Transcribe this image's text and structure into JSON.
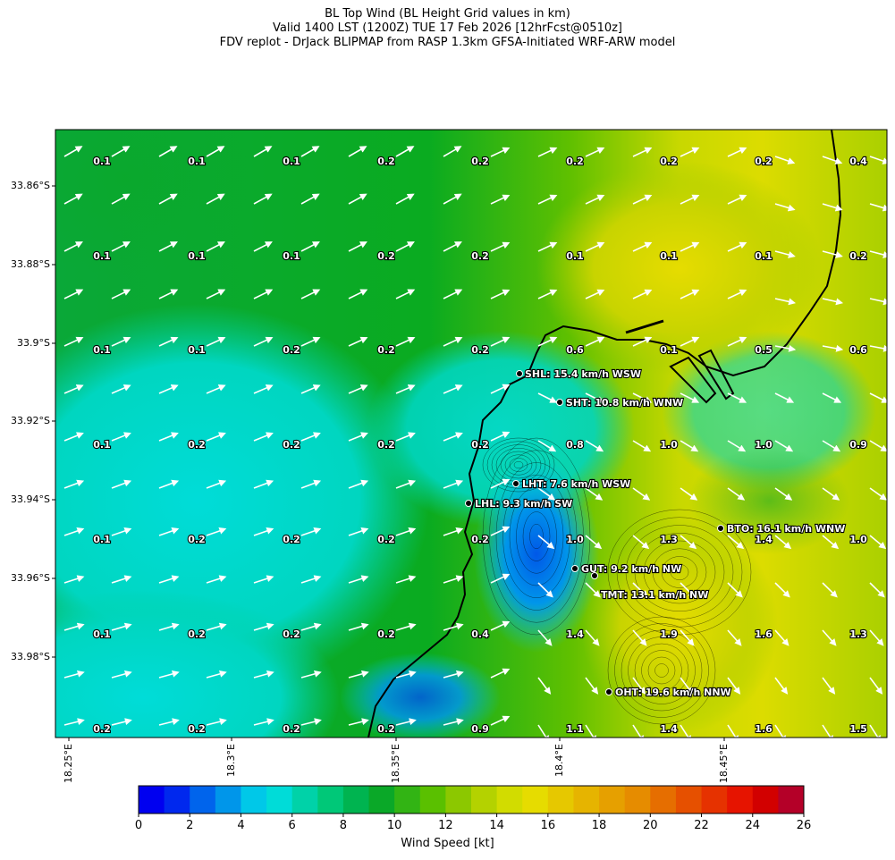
{
  "title": {
    "line1": "BL Top Wind (BL Height Grid values in km)",
    "line2": "Valid 1400 LST (1200Z) TUE 17 Feb 2026 [12hrFcst@0510z]",
    "line3": "FDV replot - DrJack BLIPMAP from RASP 1.3km GFSA-Initiated WRF-ARW model"
  },
  "axes": {
    "lat_ticks": [
      "33.86°S",
      "33.88°S",
      "33.9°S",
      "33.92°S",
      "33.94°S",
      "33.96°S",
      "33.98°S"
    ],
    "lon_ticks": [
      "18.25°E",
      "18.3°E",
      "18.35°E",
      "18.4°E",
      "18.45°E"
    ]
  },
  "grid_values": {
    "rows": [
      [
        "0.1",
        "0.1",
        "0.1",
        "0.2",
        "0.2",
        "0.2",
        "0.2",
        "0.2",
        "0.4"
      ],
      [
        "0.1",
        "0.1",
        "0.1",
        "0.2",
        "0.2",
        "0.1",
        "0.1",
        "0.1",
        "0.2"
      ],
      [
        "0.1",
        "0.1",
        "0.2",
        "0.2",
        "0.2",
        "0.6",
        "0.1",
        "0.5",
        "0.6"
      ],
      [
        "0.1",
        "0.2",
        "0.2",
        "0.2",
        "0.2",
        "0.8",
        "1.0",
        "1.0",
        "0.9"
      ],
      [
        "0.1",
        "0.2",
        "0.2",
        "0.2",
        "0.2",
        "1.0",
        "1.3",
        "1.4",
        "1.0"
      ],
      [
        "0.1",
        "0.2",
        "0.2",
        "0.2",
        "0.4",
        "1.4",
        "1.9",
        "1.6",
        "1.3"
      ],
      [
        "0.2",
        "0.2",
        "0.2",
        "0.2",
        "0.9",
        "1.1",
        "1.4",
        "1.6",
        "1.5"
      ]
    ]
  },
  "stations": [
    {
      "label": "SHL: 15.4 km/h WSW"
    },
    {
      "label": "SHT: 10.8 km/h WNW"
    },
    {
      "label": "LHT: 7.6 km/h WSW"
    },
    {
      "label": "LHL: 9.3 km/h SW"
    },
    {
      "label": "BTO: 16.1 km/h WNW"
    },
    {
      "label": "GUT: 9.2 km/h NW"
    },
    {
      "label": "TMT: 13.1 km/h NW"
    },
    {
      "label": "OHT: 19.6 km/h NNW"
    }
  ],
  "colorbar": {
    "label": "Wind Speed [kt]",
    "ticks": [
      "0",
      "2",
      "4",
      "6",
      "8",
      "10",
      "12",
      "14",
      "16",
      "18",
      "20",
      "22",
      "24",
      "26"
    ],
    "colors": [
      "#0000f0",
      "#0028ee",
      "#0064ec",
      "#0096ea",
      "#00c8e8",
      "#00dcd8",
      "#00d2a8",
      "#00c878",
      "#00b450",
      "#0aa828",
      "#32b414",
      "#5ac000",
      "#8cc800",
      "#b4d200",
      "#d2dc00",
      "#e6dc00",
      "#e6c800",
      "#e6b400",
      "#e6a000",
      "#e68c00",
      "#e66e00",
      "#e65000",
      "#e63200",
      "#e61400",
      "#d20000",
      "#b40028"
    ]
  }
}
